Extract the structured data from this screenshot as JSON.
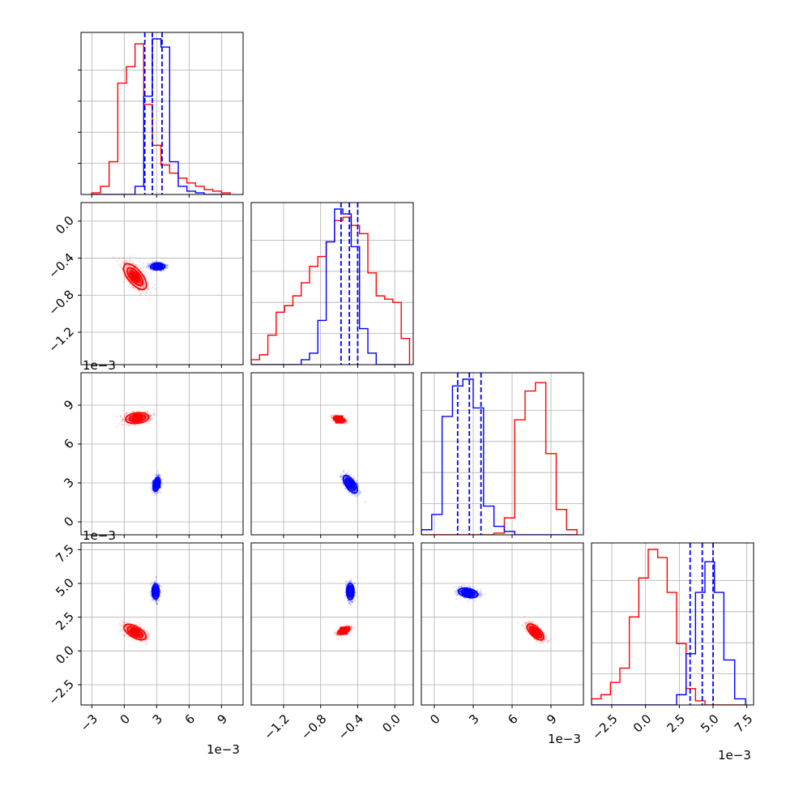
{
  "chart_data": {
    "type": "corner",
    "variables": 4,
    "multiplier_labels": [
      "1e−3",
      "1e−3",
      "1e−3",
      "1e−3"
    ],
    "colors": {
      "series_a": "#ff0000",
      "series_b": "#0000ff"
    },
    "ranges": [
      [
        -4.0,
        11.0
      ],
      [
        -1.55,
        0.2
      ],
      [
        -1.0,
        11.5
      ],
      [
        -4.0,
        8.0
      ]
    ],
    "ticks": [
      {
        "values": [
          -3,
          0,
          3,
          6,
          9
        ],
        "labels": [
          "−3",
          "0",
          "3",
          "6",
          "9"
        ]
      },
      {
        "values": [
          -1.2,
          -0.8,
          -0.4,
          0.0
        ],
        "labels": [
          "−1.2",
          "−0.8",
          "−0.4",
          "0.0"
        ]
      },
      {
        "values": [
          0,
          3,
          6,
          9
        ],
        "labels": [
          "0",
          "3",
          "6",
          "9"
        ]
      },
      {
        "values": [
          -2.5,
          0.0,
          2.5,
          5.0,
          7.5
        ],
        "labels": [
          "−2.5",
          "0.0",
          "2.5",
          "5.0",
          "7.5"
        ]
      }
    ],
    "histograms": [
      {
        "edges": [
          -3.0,
          -2.2,
          -1.4,
          -0.6,
          0.2,
          1.0,
          1.8,
          2.6,
          3.4,
          4.2,
          5.0,
          5.8,
          6.6,
          7.4,
          8.2,
          9.0,
          9.8
        ],
        "series_a": [
          1,
          5,
          20,
          68,
          78,
          92,
          55,
          30,
          18,
          13,
          10,
          7,
          5,
          3,
          2,
          1
        ],
        "series_b": [
          0,
          0,
          0,
          0,
          0,
          5,
          60,
          95,
          90,
          20,
          5,
          2,
          1,
          0,
          0,
          0
        ],
        "quantiles_b": [
          1.9,
          2.6,
          3.5
        ]
      },
      {
        "edges": [
          -1.55,
          -1.46,
          -1.37,
          -1.28,
          -1.19,
          -1.1,
          -1.01,
          -0.92,
          -0.83,
          -0.74,
          -0.65,
          -0.56,
          -0.47,
          -0.38,
          -0.29,
          -0.2,
          -0.11,
          -0.02,
          0.07,
          0.16
        ],
        "series_a": [
          3,
          6,
          18,
          32,
          36,
          42,
          50,
          60,
          66,
          75,
          88,
          90,
          85,
          80,
          56,
          42,
          40,
          38,
          16
        ],
        "series_b": [
          0,
          0,
          0,
          0,
          0,
          0,
          3,
          7,
          27,
          75,
          95,
          92,
          72,
          22,
          7,
          0,
          0,
          0,
          0
        ],
        "quantiles_b": [
          -0.58,
          -0.49,
          -0.4
        ]
      },
      {
        "edges": [
          -1.0,
          -0.2,
          0.6,
          1.4,
          2.2,
          3.0,
          3.8,
          4.6,
          5.4,
          6.2,
          7.0,
          7.8,
          8.6,
          9.4,
          10.2,
          11.0
        ],
        "series_a": [
          0,
          0,
          0,
          0,
          0,
          0,
          0,
          1,
          10,
          68,
          85,
          90,
          48,
          15,
          3
        ],
        "series_b": [
          3,
          12,
          70,
          88,
          92,
          75,
          17,
          5,
          2,
          0,
          0,
          0,
          0,
          0,
          0
        ],
        "quantiles_b": [
          1.8,
          2.7,
          3.6
        ]
      },
      {
        "edges": [
          -4.0,
          -3.3,
          -2.6,
          -1.9,
          -1.2,
          -0.5,
          0.2,
          0.9,
          1.6,
          2.3,
          3.0,
          3.7,
          4.4,
          5.1,
          5.8,
          6.6,
          7.4
        ],
        "series_a": [
          3,
          5,
          11,
          18,
          43,
          62,
          76,
          72,
          55,
          30,
          8,
          2,
          0,
          0,
          0,
          0
        ],
        "series_b": [
          0,
          0,
          0,
          0,
          0,
          0,
          0,
          0,
          0,
          5,
          25,
          55,
          70,
          55,
          22,
          3
        ],
        "quantiles_b": [
          3.3,
          4.2,
          5.0
        ]
      }
    ],
    "pairs": [
      {
        "x": 0,
        "y": 1,
        "series_a": {
          "center": [
            1.0,
            -0.6
          ],
          "dir": [
            0.4,
            -0.056
          ],
          "spread": [
            3.7,
            0.18
          ]
        },
        "series_b": {
          "center": [
            3.1,
            -0.49
          ],
          "dir": [
            1,
            0
          ],
          "spread": [
            0.9,
            0.06
          ]
        }
      },
      {
        "x": 0,
        "y": 2,
        "series_a": {
          "center": [
            1.2,
            8.0
          ],
          "dir": [
            1,
            0.1
          ],
          "spread": [
            2.4,
            1.2
          ]
        },
        "series_b": {
          "center": [
            3.0,
            2.9
          ],
          "dir": [
            0.3,
            1
          ],
          "spread": [
            0.9,
            1.3
          ]
        }
      },
      {
        "x": 1,
        "y": 2,
        "series_a": {
          "center": [
            -0.6,
            7.9
          ],
          "dir": [
            0.8,
            -1.6
          ],
          "spread": [
            0.44,
            0.6
          ]
        },
        "series_b": {
          "center": [
            -0.48,
            2.9
          ],
          "dir": [
            0.1,
            -1.0
          ],
          "spread": [
            1.6,
            0.04
          ]
        }
      },
      {
        "x": 0,
        "y": 3,
        "series_a": {
          "center": [
            1.0,
            1.4
          ],
          "dir": [
            1,
            -0.45
          ],
          "spread": [
            2.6,
            1.0
          ]
        },
        "series_b": {
          "center": [
            2.9,
            4.4
          ],
          "dir": [
            0,
            1
          ],
          "spread": [
            1.1,
            0.8
          ]
        }
      },
      {
        "x": 1,
        "y": 3,
        "series_a": {
          "center": [
            -0.55,
            1.5
          ],
          "dir": [
            0.8,
            2.6
          ],
          "spread": [
            0.55,
            0.7
          ]
        },
        "series_b": {
          "center": [
            -0.48,
            4.4
          ],
          "dir": [
            0,
            1
          ],
          "spread": [
            1.0,
            0.06
          ]
        }
      },
      {
        "x": 2,
        "y": 3,
        "series_a": {
          "center": [
            7.8,
            1.4
          ],
          "dir": [
            1,
            -0.9
          ],
          "spread": [
            1.7,
            0.9
          ]
        },
        "series_b": {
          "center": [
            2.6,
            4.3
          ],
          "dir": [
            1,
            -0.2
          ],
          "spread": [
            1.5,
            0.9
          ]
        }
      }
    ]
  }
}
